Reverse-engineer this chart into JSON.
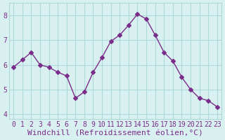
{
  "x": [
    0,
    1,
    2,
    3,
    4,
    5,
    6,
    7,
    8,
    9,
    10,
    11,
    12,
    13,
    14,
    15,
    16,
    17,
    18,
    19,
    20,
    21,
    22,
    23
  ],
  "y": [
    5.9,
    6.2,
    6.5,
    6.0,
    5.9,
    5.7,
    5.55,
    4.65,
    4.9,
    5.7,
    6.3,
    6.95,
    7.2,
    7.6,
    8.05,
    7.85,
    7.2,
    6.5,
    6.15,
    5.5,
    5.0,
    4.65,
    4.55,
    4.3
  ],
  "line_color": "#7b2d8b",
  "marker": "D",
  "marker_size": 3,
  "bg_color": "#d8f0f0",
  "grid_color": "#b0d8d8",
  "xlabel": "Windchill (Refroidissement éolien,°C)",
  "xlabel_color": "#7b2d8b",
  "xlabel_fontsize": 8,
  "tick_color": "#7b2d8b",
  "tick_fontsize": 7,
  "yticks": [
    4,
    5,
    6,
    7,
    8
  ],
  "ylim": [
    3.8,
    8.5
  ],
  "xlim": [
    -0.5,
    23.5
  ]
}
